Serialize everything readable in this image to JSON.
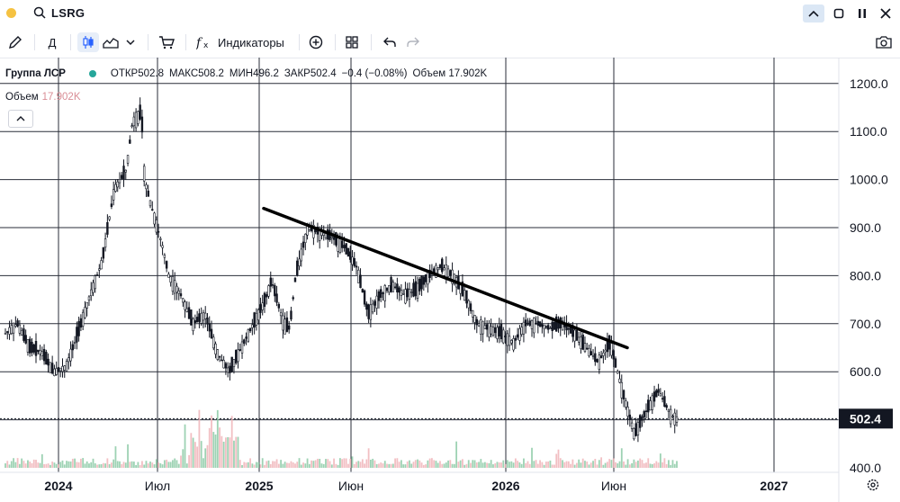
{
  "symbol": {
    "ticker": "LSRG"
  },
  "toolbar": {
    "interval": "Д",
    "indicators_label": "Индикаторы"
  },
  "legend": {
    "name": "Группа ЛСР",
    "open": "ОТКР502.8",
    "high": "МАКС508.2",
    "low": "МИН496.2",
    "close": "ЗАКР502.4",
    "change": "−0.4 (−0.08%)",
    "volume": "Объем 17.902K"
  },
  "volume_legend": {
    "label": "Объем",
    "value": "17.902K"
  },
  "chart_data": {
    "type": "candlestick",
    "price_axis": {
      "ticks": [
        400,
        500,
        600,
        700,
        800,
        900,
        1000,
        1100,
        1200
      ],
      "labels": [
        "400.0",
        "500.0",
        "600.0",
        "700.0",
        "800.0",
        "900.0",
        "1000.0",
        "1100.0",
        "1200.0"
      ],
      "last_price_label": "502.4",
      "last_price": 502.4
    },
    "time_axis": {
      "labels": [
        "2024",
        "Июл",
        "2025",
        "Июн",
        "2026",
        "Июн",
        "2027"
      ]
    },
    "price_path": [
      [
        0,
        680
      ],
      [
        0.02,
        700
      ],
      [
        0.04,
        650
      ],
      [
        0.06,
        640
      ],
      [
        0.08,
        600
      ],
      [
        0.1,
        610
      ],
      [
        0.12,
        680
      ],
      [
        0.14,
        760
      ],
      [
        0.16,
        830
      ],
      [
        0.18,
        980
      ],
      [
        0.2,
        1020
      ],
      [
        0.21,
        1120
      ],
      [
        0.225,
        1140
      ],
      [
        0.23,
        1000
      ],
      [
        0.24,
        950
      ],
      [
        0.26,
        860
      ],
      [
        0.27,
        800
      ],
      [
        0.29,
        760
      ],
      [
        0.31,
        700
      ],
      [
        0.33,
        720
      ],
      [
        0.35,
        640
      ],
      [
        0.37,
        600
      ],
      [
        0.39,
        650
      ],
      [
        0.41,
        700
      ],
      [
        0.43,
        750
      ],
      [
        0.44,
        790
      ],
      [
        0.46,
        700
      ],
      [
        0.47,
        690
      ],
      [
        0.48,
        800
      ],
      [
        0.5,
        900
      ],
      [
        0.52,
        890
      ],
      [
        0.54,
        880
      ],
      [
        0.56,
        860
      ],
      [
        0.58,
        820
      ],
      [
        0.6,
        720
      ],
      [
        0.62,
        760
      ],
      [
        0.64,
        780
      ],
      [
        0.66,
        760
      ],
      [
        0.68,
        770
      ],
      [
        0.7,
        800
      ],
      [
        0.72,
        820
      ],
      [
        0.74,
        800
      ],
      [
        0.76,
        760
      ],
      [
        0.78,
        700
      ],
      [
        0.8,
        690
      ],
      [
        0.82,
        680
      ],
      [
        0.84,
        660
      ],
      [
        0.86,
        700
      ],
      [
        0.88,
        700
      ],
      [
        0.9,
        690
      ],
      [
        0.92,
        700
      ],
      [
        0.94,
        680
      ],
      [
        0.96,
        650
      ],
      [
        0.98,
        620
      ],
      [
        1.0,
        660
      ],
      [
        1.02,
        560
      ],
      [
        1.04,
        470
      ],
      [
        1.06,
        520
      ],
      [
        1.08,
        560
      ],
      [
        1.1,
        510
      ],
      [
        1.11,
        502
      ]
    ],
    "trendline": {
      "from": {
        "x": "2025-01",
        "y": 940
      },
      "to": {
        "x": "2026-07",
        "y": 650
      }
    },
    "colors": {
      "candle": "#131722",
      "trendline": "#000000",
      "grid": "#2a2e39",
      "volume_up": "#8ccaa6",
      "volume_down": "#f0b4b8",
      "accent": "#2962ff"
    }
  }
}
